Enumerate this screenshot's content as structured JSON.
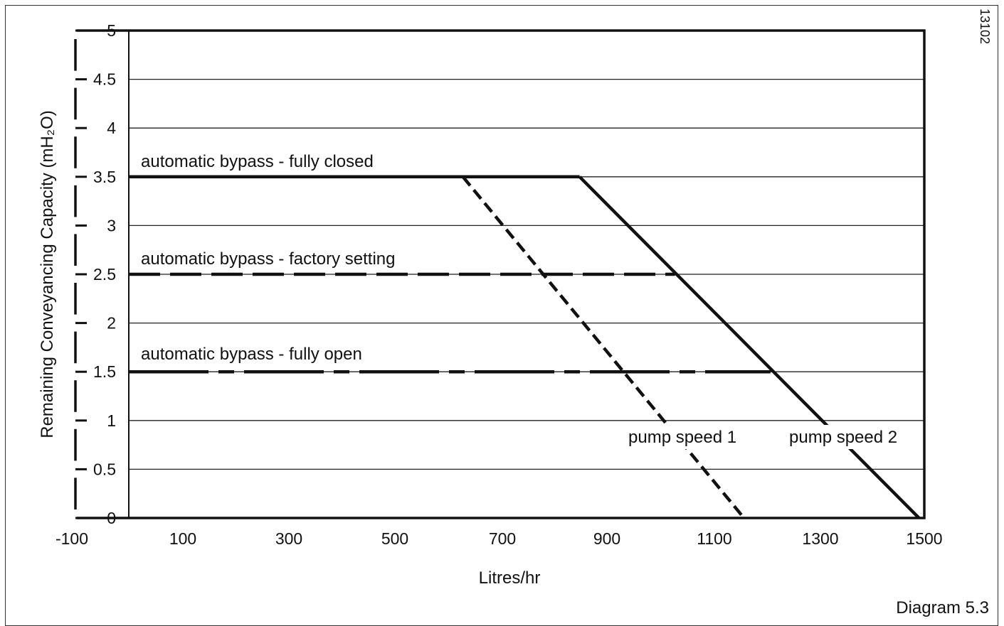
{
  "chart_data": {
    "type": "line",
    "xlabel": "Litres/hr",
    "ylabel": "Remaining Conveyancing Capacity (mH₂O)",
    "xlim": [
      -100,
      1500
    ],
    "ylim": [
      0,
      5
    ],
    "x_ticks": [
      "-100",
      "100",
      "300",
      "500",
      "700",
      "900",
      "1100",
      "1300",
      "1500"
    ],
    "y_ticks": [
      "0",
      "0.5",
      "1",
      "1.5",
      "2",
      "2.5",
      "3",
      "3.5",
      "4",
      "4.5",
      "5"
    ],
    "grid": true,
    "series": [
      {
        "name": "automatic bypass - fully closed",
        "style": "solid",
        "points": [
          [
            0,
            3.5
          ],
          [
            850,
            3.5
          ]
        ]
      },
      {
        "name": "automatic bypass - factory setting",
        "style": "dashed",
        "points": [
          [
            0,
            2.5
          ],
          [
            1030,
            2.5
          ]
        ]
      },
      {
        "name": "automatic bypass - fully open",
        "style": "dashdot",
        "points": [
          [
            0,
            1.5
          ],
          [
            1210,
            1.5
          ]
        ]
      },
      {
        "name": "pump speed 1",
        "style": "dotted",
        "points": [
          [
            630,
            3.5
          ],
          [
            1160,
            0
          ]
        ]
      },
      {
        "name": "pump speed 2",
        "style": "solid",
        "points": [
          [
            850,
            3.5
          ],
          [
            1490,
            0
          ]
        ]
      }
    ]
  },
  "figure": {
    "caption": "Diagram 5.3",
    "ref_number": "13102"
  }
}
